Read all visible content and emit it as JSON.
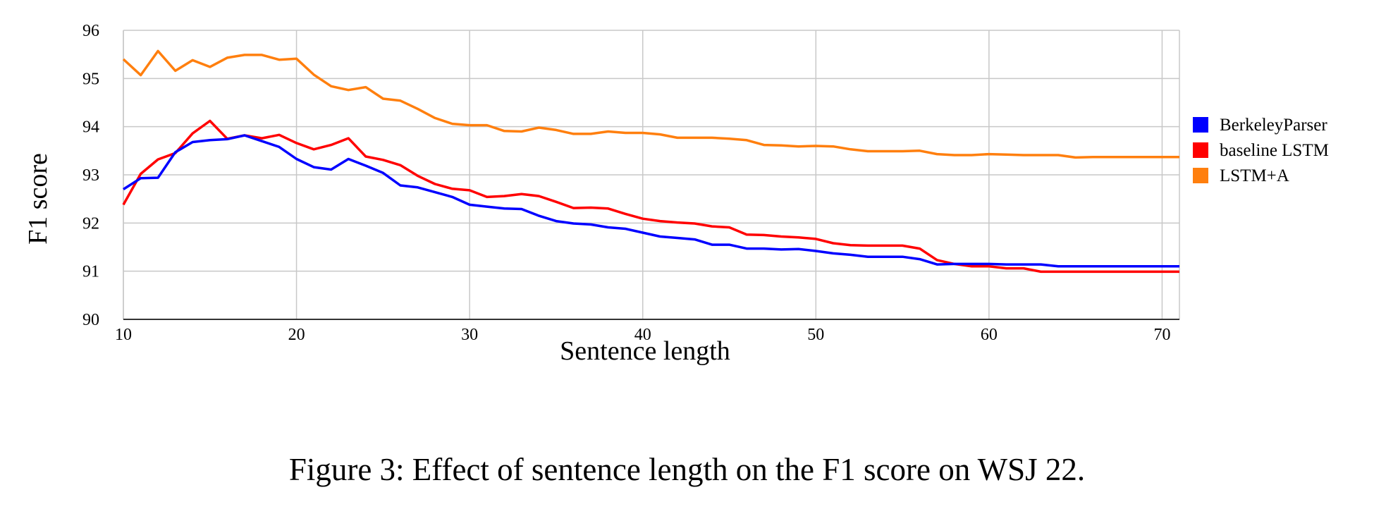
{
  "caption": "Figure 3: Effect of sentence length on the F1 score on WSJ 22.",
  "chart_data": {
    "type": "line",
    "title": "",
    "xlabel": "Sentence length",
    "ylabel": "F1 score",
    "xlim": [
      10,
      71
    ],
    "ylim": [
      90,
      96
    ],
    "xticks": [
      10,
      20,
      30,
      40,
      50,
      60,
      70
    ],
    "yticks": [
      90,
      91,
      92,
      93,
      94,
      95,
      96
    ],
    "grid": true,
    "legend_position": "right",
    "x": [
      10,
      11,
      12,
      13,
      14,
      15,
      16,
      17,
      18,
      19,
      20,
      21,
      22,
      23,
      24,
      25,
      26,
      27,
      28,
      29,
      30,
      31,
      32,
      33,
      34,
      35,
      36,
      37,
      38,
      39,
      40,
      41,
      42,
      43,
      44,
      45,
      46,
      47,
      48,
      49,
      50,
      51,
      52,
      53,
      54,
      55,
      56,
      57,
      58,
      59,
      60,
      61,
      62,
      63,
      64,
      65,
      66,
      67,
      68,
      69,
      70,
      71
    ],
    "series": [
      {
        "name": "BerkeleyParser",
        "color": "#0000ff",
        "values": [
          92.7,
          92.93,
          92.94,
          93.47,
          93.68,
          93.72,
          93.74,
          93.82,
          93.7,
          93.58,
          93.33,
          93.16,
          93.11,
          93.33,
          93.19,
          93.04,
          92.78,
          92.74,
          92.64,
          92.54,
          92.38,
          92.34,
          92.3,
          92.29,
          92.15,
          92.04,
          91.99,
          91.97,
          91.91,
          91.88,
          91.8,
          91.72,
          91.69,
          91.66,
          91.55,
          91.55,
          91.47,
          91.47,
          91.45,
          91.46,
          91.42,
          91.37,
          91.34,
          91.3,
          91.3,
          91.3,
          91.25,
          91.14,
          91.15,
          91.15,
          91.15,
          91.14,
          91.14,
          91.14,
          91.1,
          91.1,
          91.1,
          91.1,
          91.1,
          91.1,
          91.1,
          91.1
        ]
      },
      {
        "name": "baseline LSTM",
        "color": "#ff0000",
        "values": [
          92.38,
          93.02,
          93.32,
          93.45,
          93.86,
          94.12,
          93.75,
          93.82,
          93.76,
          93.83,
          93.66,
          93.53,
          93.62,
          93.76,
          93.38,
          93.31,
          93.2,
          92.98,
          92.81,
          92.71,
          92.68,
          92.54,
          92.56,
          92.6,
          92.56,
          92.44,
          92.31,
          92.32,
          92.3,
          92.19,
          92.09,
          92.04,
          92.01,
          91.99,
          91.93,
          91.91,
          91.76,
          91.75,
          91.72,
          91.7,
          91.67,
          91.58,
          91.54,
          91.53,
          91.53,
          91.53,
          91.47,
          91.23,
          91.15,
          91.1,
          91.1,
          91.06,
          91.06,
          90.99,
          90.99,
          90.99,
          90.99,
          90.99,
          90.99,
          90.99,
          90.99,
          90.99
        ]
      },
      {
        "name": "LSTM+A",
        "color": "#ff7f0e",
        "values": [
          95.4,
          95.07,
          95.57,
          95.16,
          95.38,
          95.24,
          95.43,
          95.49,
          95.49,
          95.39,
          95.41,
          95.08,
          94.84,
          94.76,
          94.82,
          94.58,
          94.54,
          94.37,
          94.18,
          94.06,
          94.03,
          94.03,
          93.91,
          93.9,
          93.98,
          93.93,
          93.85,
          93.85,
          93.9,
          93.87,
          93.87,
          93.84,
          93.77,
          93.77,
          93.77,
          93.75,
          93.72,
          93.62,
          93.61,
          93.59,
          93.6,
          93.59,
          93.53,
          93.49,
          93.49,
          93.49,
          93.5,
          93.43,
          93.41,
          93.41,
          93.43,
          93.42,
          93.41,
          93.41,
          93.41,
          93.36,
          93.37,
          93.37,
          93.37,
          93.37,
          93.37,
          93.37
        ]
      }
    ]
  }
}
